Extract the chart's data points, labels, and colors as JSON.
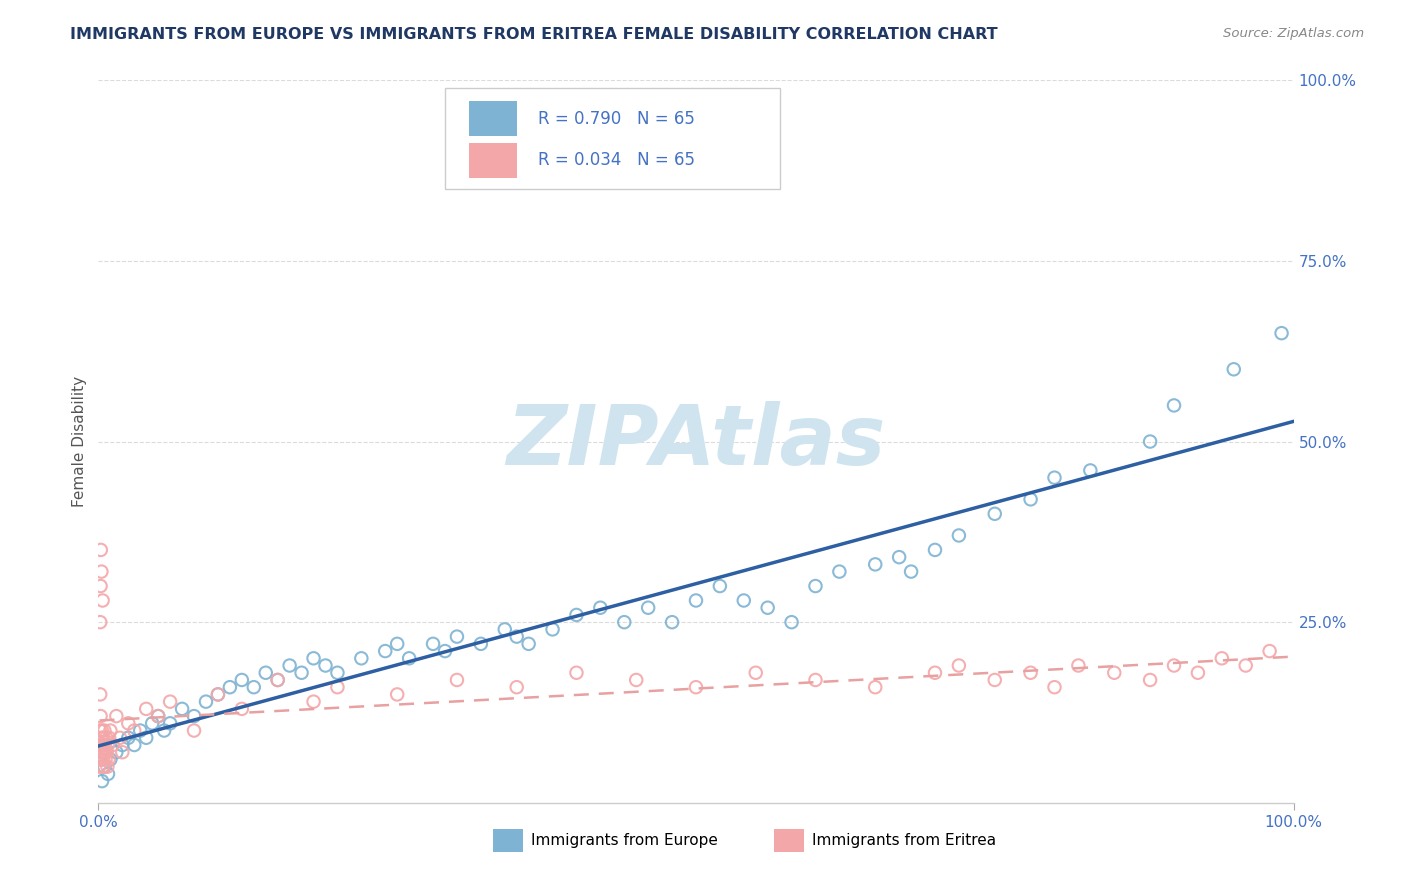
{
  "title": "IMMIGRANTS FROM EUROPE VS IMMIGRANTS FROM ERITREA FEMALE DISABILITY CORRELATION CHART",
  "source": "Source: ZipAtlas.com",
  "ylabel": "Female Disability",
  "legend_label1": "Immigrants from Europe",
  "legend_label2": "Immigrants from Eritrea",
  "R1": 0.79,
  "R2": 0.034,
  "N1": 65,
  "N2": 65,
  "color_europe": "#7FB3D3",
  "color_eritrea": "#F4A7A8",
  "color_trendline_europe": "#2E5FA3",
  "color_trendline_eritrea": "#E8A0A0",
  "watermark": "ZIPAtlas",
  "watermark_color": "#D0E4F0",
  "title_color": "#1F3864",
  "axis_label_color": "#4472C4",
  "background_color": "#FFFFFF",
  "grid_color": "#CCCCCC"
}
